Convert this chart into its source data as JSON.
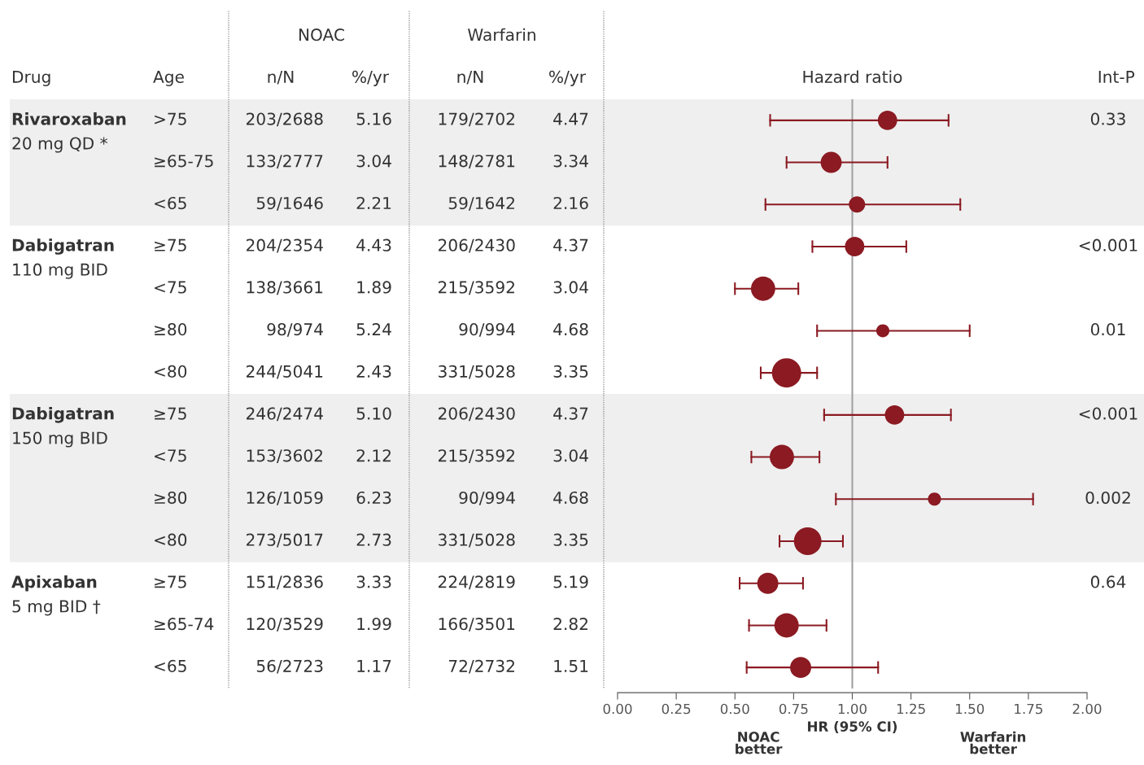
{
  "chart_data": [
    {
      "type": "other",
      "categories": [
        "Drug",
        "Age",
        "n/N",
        "%/yr",
        "n/N",
        "%/yr"
      ],
      "annotations": [
        "NOAC",
        "Warfarin"
      ],
      "cell_labels": [
        [
          "Rivaroxaban\n20 mg QD *",
          ">75",
          "203/2688",
          "5.16",
          "179/2702",
          "4.47"
        ],
        [
          null,
          "≥65-75",
          "133/2777",
          "3.04",
          "148/2781",
          "3.34"
        ],
        [
          null,
          "<65",
          "59/1646",
          "2.21",
          "59/1642",
          "2.16"
        ],
        [
          "Dabigatran\n110 mg BID",
          "≥75",
          "204/2354",
          "4.43",
          "206/2430",
          "4.37"
        ],
        [
          null,
          "<75",
          "138/3661",
          "1.89",
          "215/3592",
          "3.04"
        ],
        [
          null,
          "≥80",
          "98/974",
          "5.24",
          "90/994",
          "4.68"
        ],
        [
          null,
          "<80",
          "244/5041",
          "2.43",
          "331/5028",
          "3.35"
        ],
        [
          "Dabigatran\n150 mg BID",
          "≥75",
          "246/2474",
          "5.10",
          "206/2430",
          "4.37"
        ],
        [
          null,
          "<75",
          "153/3602",
          "2.12",
          "215/3592",
          "3.04"
        ],
        [
          null,
          "≥80",
          "126/1059",
          "6.23",
          "90/994",
          "4.68"
        ],
        [
          null,
          "<80",
          "273/5017",
          "2.73",
          "331/5028",
          "3.35"
        ],
        [
          "Apixaban\n5 mg BID †",
          "≥75",
          "151/2836",
          "3.33",
          "224/2819",
          "5.19"
        ],
        [
          null,
          "≥65-74",
          "120/3529",
          "1.99",
          "166/3501",
          "2.82"
        ],
        [
          null,
          "<65",
          "56/2723",
          "1.17",
          "72/2732",
          "1.51"
        ]
      ]
    },
    {
      "type": "bubble",
      "orientation": "horizontal",
      "title": "Hazard ratio",
      "xlabel": "HR (95% CI)",
      "y2label": "Int-P",
      "categories": [
        null,
        null,
        null,
        null,
        null,
        null,
        null,
        null,
        null,
        null,
        null,
        null,
        null,
        null
      ],
      "values": [
        1.15,
        0.91,
        1.02,
        1.01,
        0.62,
        1.13,
        0.72,
        1.18,
        0.7,
        1.35,
        0.81,
        0.64,
        0.72,
        0.78
      ],
      "errors": [
        [
          0.65,
          1.41
        ],
        [
          0.72,
          1.15
        ],
        [
          0.63,
          1.46
        ],
        [
          0.83,
          1.23
        ],
        [
          0.5,
          0.77
        ],
        [
          0.85,
          1.5
        ],
        [
          0.61,
          0.85
        ],
        [
          0.88,
          1.42
        ],
        [
          0.57,
          0.86
        ],
        [
          0.93,
          1.77
        ],
        [
          0.69,
          0.96
        ],
        [
          0.52,
          0.79
        ],
        [
          0.56,
          0.89
        ],
        [
          0.55,
          1.11
        ]
      ],
      "sizes": [
        0.44,
        0.52,
        0.31,
        0.44,
        0.69,
        0.2,
        1,
        0.44,
        0.69,
        0.2,
        0.89,
        0.52,
        0.69,
        0.52
      ],
      "color": "#8b1a22",
      "y2_categories": [
        "0.33",
        null,
        null,
        "<0.001",
        null,
        "0.01",
        null,
        "<0.001",
        null,
        "0.002",
        null,
        "0.64",
        null,
        null
      ],
      "xlim": [
        0,
        2
      ],
      "xticks": [
        {
          "value": 0,
          "label": "0.00"
        },
        {
          "value": 0.25,
          "label": "0.25"
        },
        {
          "value": 0.5,
          "label": "0.50"
        },
        {
          "value": 0.75,
          "label": "0.75"
        },
        {
          "value": 1,
          "label": "1.00"
        },
        {
          "value": 1.25,
          "label": "1.25"
        },
        {
          "value": 1.5,
          "label": "1.50"
        },
        {
          "value": 1.75,
          "label": "1.75"
        },
        {
          "value": 2,
          "label": "2.00"
        }
      ],
      "ref_lines": [
        {
          "axis": "x",
          "value": 1,
          "color": "#a0a0a0"
        }
      ],
      "annotations": [
        "NOAC\nbetter",
        "Warfarin\nbetter"
      ],
      "tick_labels": "x",
      "grid": false,
      "legend": false
    }
  ]
}
